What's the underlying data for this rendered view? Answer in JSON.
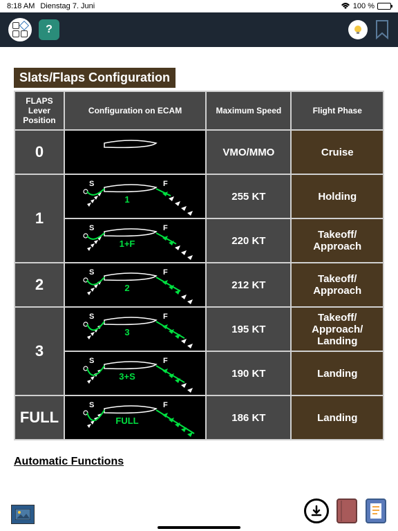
{
  "status": {
    "time": "8:18 AM",
    "date": "Dienstag 7. Juni",
    "wifi_icon": "wifi",
    "battery_pct": "100 %"
  },
  "nav": {
    "grid_icon": "grid-icon",
    "help_label": "?",
    "bulb_icon": "bulb",
    "bookmark_icon": "bookmark"
  },
  "section_title": "Slats/Flaps Configuration",
  "headers": {
    "lever": "FLAPS Lever Position",
    "ecam": "Configuration on ECAM",
    "speed": "Maximum Speed",
    "phase": "Flight Phase"
  },
  "rows": [
    {
      "lever": "0",
      "configs": [
        {
          "label": "",
          "slat": 0,
          "flap": 0,
          "showSF": false
        }
      ],
      "speed": "VMO/MMO",
      "phase": "Cruise"
    },
    {
      "lever": "1",
      "configs": [
        {
          "label": "1",
          "slat": 0.3,
          "flap": 0.15,
          "showSF": true
        },
        {
          "label": "1+F",
          "slat": 0.3,
          "flap": 0.35,
          "showSF": true
        }
      ],
      "speeds": [
        "255 KT",
        "220 KT"
      ],
      "phases": [
        "Holding",
        "Takeoff/ Approach"
      ]
    },
    {
      "lever": "2",
      "configs": [
        {
          "label": "2",
          "slat": 0.5,
          "flap": 0.5,
          "showSF": true
        }
      ],
      "speed": "212 KT",
      "phase": "Takeoff/ Approach"
    },
    {
      "lever": "3",
      "configs": [
        {
          "label": "3",
          "slat": 0.7,
          "flap": 0.65,
          "showSF": true
        },
        {
          "label": "3+S",
          "slat": 0.85,
          "flap": 0.65,
          "showSF": true
        }
      ],
      "speeds": [
        "195 KT",
        "190 KT"
      ],
      "phases": [
        "Takeoff/ Approach/ Landing",
        "Landing"
      ]
    },
    {
      "lever": "FULL",
      "configs": [
        {
          "label": "FULL",
          "slat": 1.0,
          "flap": 1.0,
          "showSF": true
        }
      ],
      "speed": "186 KT",
      "phase": "Landing"
    }
  ],
  "colors": {
    "ecam_green": "#00e040",
    "ecam_white": "#ffffff",
    "header_bg": "#474747",
    "phase_bg": "#4a3820",
    "nav_bg": "#1d2733"
  },
  "subheader": "Automatic Functions",
  "bottom": {
    "image_icon": "image",
    "download_icon": "download",
    "book1_color": "#a85a5a",
    "book2_color": "#5a7aba"
  }
}
